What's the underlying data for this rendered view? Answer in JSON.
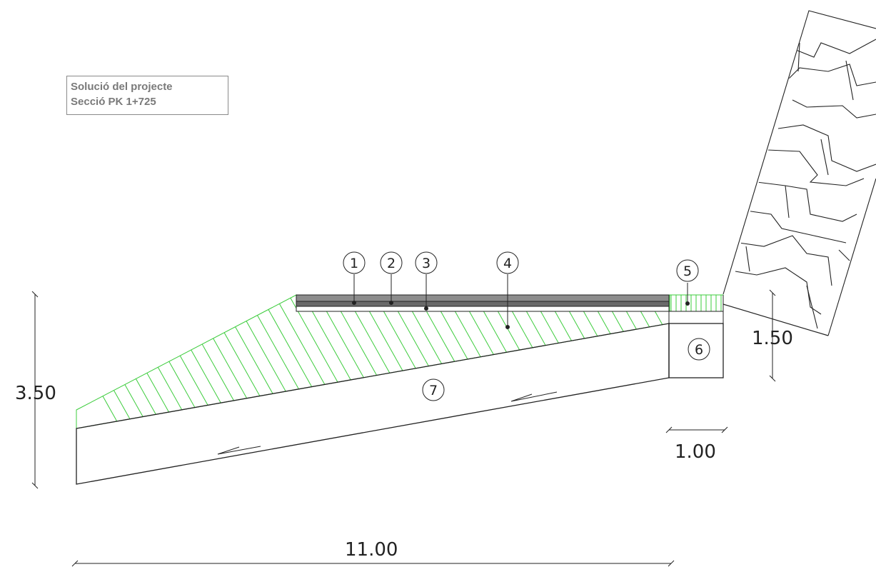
{
  "title": {
    "line1": "Solució del projecte",
    "line2": "Secció PK 1+725"
  },
  "dimensions": {
    "height_left": "3.50",
    "height_right": "1.50",
    "width_total": "11.00",
    "width_gutter": "1.00"
  },
  "callouts": [
    "1",
    "2",
    "3",
    "4",
    "5",
    "6",
    "7"
  ],
  "colors": {
    "line": "#222222",
    "hatch": "#3ccc3c",
    "pavement": "#8c8c8c",
    "title_text": "#7a7a7a"
  }
}
